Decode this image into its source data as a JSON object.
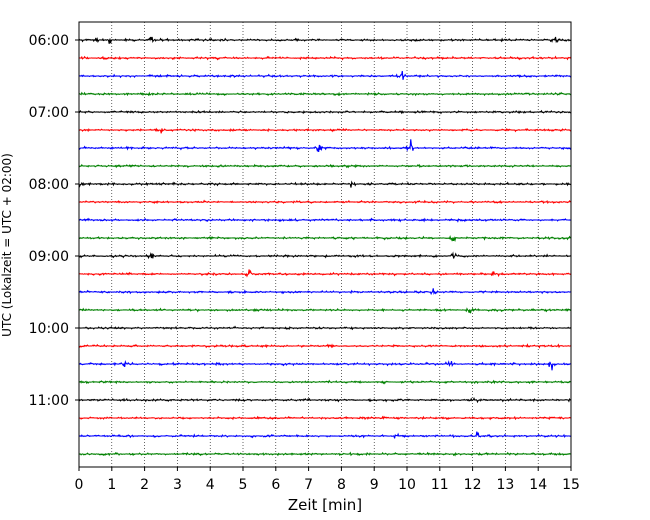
{
  "chart_data": {
    "type": "line",
    "title": "",
    "xlabel": "Zeit  [min]",
    "ylabel": "UTC (Lokalzeit = UTC + 02:00)",
    "xlim": [
      0,
      15
    ],
    "x_ticks": [
      "0",
      "1",
      "2",
      "3",
      "4",
      "5",
      "6",
      "7",
      "8",
      "9",
      "10",
      "11",
      "12",
      "13",
      "14",
      "15"
    ],
    "y_ticks": [
      "06:00",
      "07:00",
      "08:00",
      "09:00",
      "10:00",
      "11:00"
    ],
    "grid": "vertical dotted at each minute",
    "legend": "none",
    "trace_interval_min": 15,
    "trace_start": "06:00",
    "trace_count": 24,
    "trace_colors": [
      "#000000",
      "#ff0000",
      "#0000ff",
      "#008000"
    ],
    "noise_amplitude": 0.1,
    "events": [
      {
        "trace": 0,
        "x": 0.5,
        "amp": 0.3
      },
      {
        "trace": 0,
        "x": 0.9,
        "amp": 0.55
      },
      {
        "trace": 0,
        "x": 2.2,
        "amp": 0.4
      },
      {
        "trace": 0,
        "x": 14.5,
        "amp": 0.35
      },
      {
        "trace": 2,
        "x": 9.8,
        "amp": 1.0
      },
      {
        "trace": 5,
        "x": 2.5,
        "amp": 0.3
      },
      {
        "trace": 6,
        "x": 7.3,
        "amp": 0.55
      },
      {
        "trace": 6,
        "x": 10.1,
        "amp": 1.0
      },
      {
        "trace": 8,
        "x": 0.05,
        "amp": 0.45
      },
      {
        "trace": 8,
        "x": 8.3,
        "amp": 0.3
      },
      {
        "trace": 11,
        "x": 11.4,
        "amp": 0.35
      },
      {
        "trace": 12,
        "x": 2.2,
        "amp": 0.35
      },
      {
        "trace": 12,
        "x": 11.4,
        "amp": 0.45
      },
      {
        "trace": 13,
        "x": 5.2,
        "amp": 0.5
      },
      {
        "trace": 13,
        "x": 12.7,
        "amp": 0.4
      },
      {
        "trace": 14,
        "x": 10.8,
        "amp": 0.4
      },
      {
        "trace": 15,
        "x": 11.9,
        "amp": 0.45
      },
      {
        "trace": 18,
        "x": 1.4,
        "amp": 0.3
      },
      {
        "trace": 18,
        "x": 11.3,
        "amp": 0.6
      },
      {
        "trace": 18,
        "x": 14.4,
        "amp": 0.65
      },
      {
        "trace": 20,
        "x": 12.1,
        "amp": 0.3
      },
      {
        "trace": 22,
        "x": 9.7,
        "amp": 0.4
      },
      {
        "trace": 22,
        "x": 12.1,
        "amp": 0.55
      }
    ]
  }
}
